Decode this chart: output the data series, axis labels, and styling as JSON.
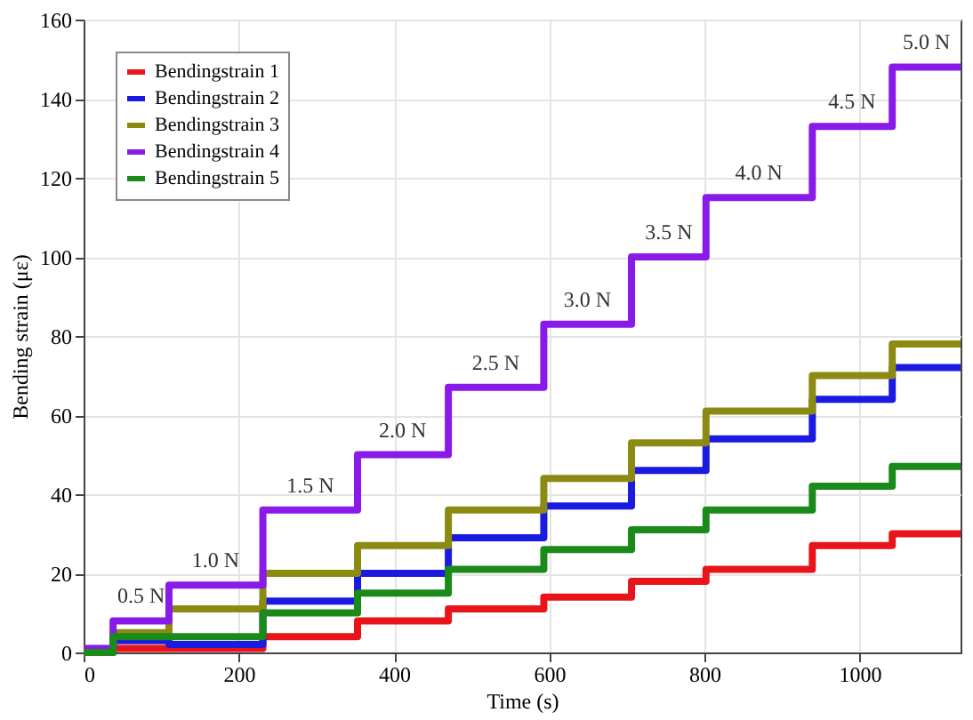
{
  "chart_data": {
    "type": "step",
    "xlabel": "Time (s)",
    "ylabel": "Bending strain (με)",
    "x": [
      0,
      38,
      110,
      231,
      353,
      470,
      593,
      706,
      802,
      939,
      1042,
      1130
    ],
    "series": [
      {
        "name": "Bendingstrain 1",
        "color": "#e8141a",
        "values": [
          0,
          1,
          1,
          4,
          8,
          11,
          14,
          18,
          21,
          27,
          30,
          30
        ]
      },
      {
        "name": "Bendingstrain 2",
        "color": "#1a1ae0",
        "values": [
          0,
          3,
          2,
          13,
          20,
          29,
          37,
          46,
          54,
          64,
          72,
          72
        ]
      },
      {
        "name": "Bendingstrain 3",
        "color": "#8b8b12",
        "values": [
          0,
          5,
          11,
          20,
          27,
          36,
          44,
          53,
          61,
          70,
          78,
          78
        ]
      },
      {
        "name": "Bendingstrain 4",
        "color": "#8a1ae8",
        "values": [
          1,
          8,
          17,
          36,
          50,
          67,
          83,
          100,
          115,
          133,
          148,
          148
        ]
      },
      {
        "name": "Bendingstrain 5",
        "color": "#1a8a1a",
        "values": [
          0,
          4,
          4,
          10,
          15,
          21,
          26,
          31,
          36,
          42,
          47,
          47
        ]
      }
    ],
    "xlim": [
      0,
      1130
    ],
    "ylim": [
      0,
      160
    ],
    "xticks": [
      0,
      200,
      400,
      600,
      800,
      1000
    ],
    "yticks": [
      0,
      20,
      40,
      60,
      80,
      100,
      120,
      140,
      160
    ],
    "grid": true,
    "legend": "top left",
    "annotations": [
      {
        "text": "0.5 N",
        "x": 74,
        "y": 8
      },
      {
        "text": "1.0 N",
        "x": 170,
        "y": 17
      },
      {
        "text": "1.5 N",
        "x": 292,
        "y": 36
      },
      {
        "text": "2.0 N",
        "x": 411,
        "y": 50
      },
      {
        "text": "2.5 N",
        "x": 531,
        "y": 67
      },
      {
        "text": "3.0 N",
        "x": 649,
        "y": 83
      },
      {
        "text": "3.5 N",
        "x": 754,
        "y": 100
      },
      {
        "text": "4.0 N",
        "x": 870,
        "y": 115
      },
      {
        "text": "4.5 N",
        "x": 990,
        "y": 133
      },
      {
        "text": "5.0 N",
        "x": 1086,
        "y": 148
      }
    ]
  }
}
